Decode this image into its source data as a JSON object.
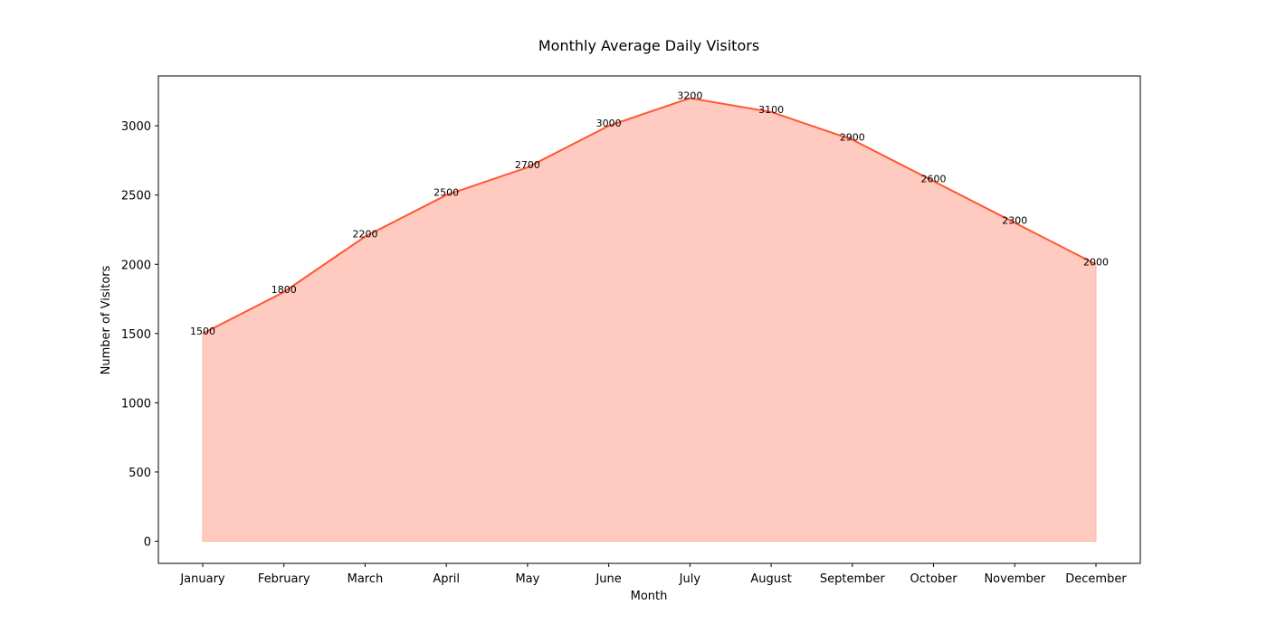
{
  "chart_data": {
    "type": "area",
    "title": "Monthly Average Daily Visitors",
    "xlabel": "Month",
    "ylabel": "Number of Visitors",
    "categories": [
      "January",
      "February",
      "March",
      "April",
      "May",
      "June",
      "July",
      "August",
      "September",
      "October",
      "November",
      "December"
    ],
    "values": [
      1500,
      1800,
      2200,
      2500,
      2700,
      3000,
      3200,
      3100,
      2900,
      2600,
      2300,
      2000
    ],
    "yticks": [
      0,
      500,
      1000,
      1500,
      2000,
      2500,
      3000
    ],
    "ylim": [
      -160,
      3360
    ],
    "grid": false,
    "legend": "none",
    "colors": {
      "line": "#ff5733",
      "fill": "#ffcac0",
      "fill_edge": "#ffb3a3"
    }
  }
}
